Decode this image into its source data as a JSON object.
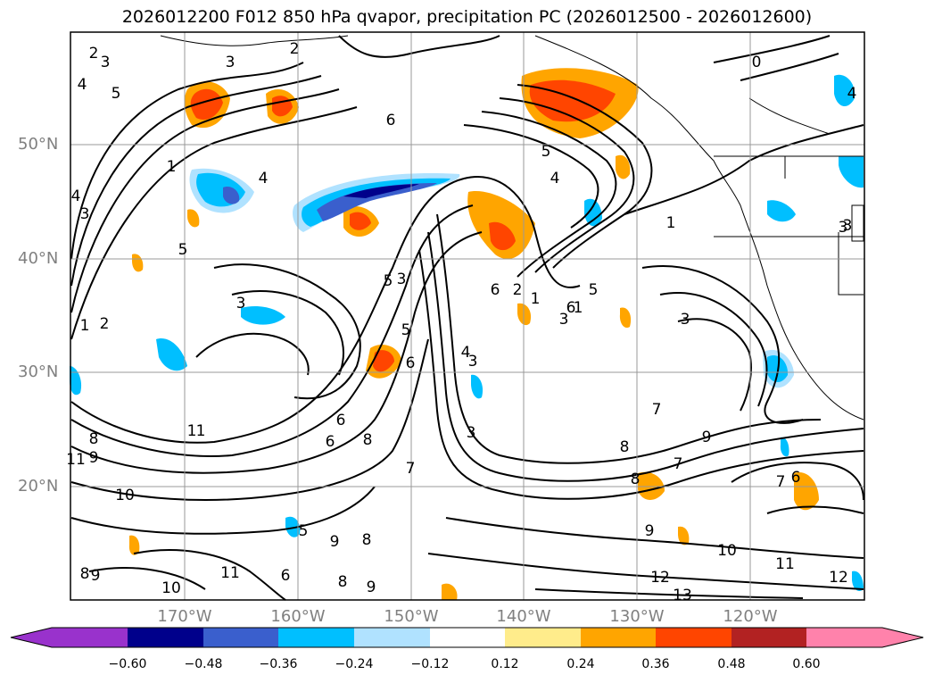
{
  "title": "2026012200 F012 850 hPa qvapor, precipitation PC (2026012500 - 2026012600)",
  "map": {
    "lat_labels": [
      "50°N",
      "40°N",
      "30°N",
      "20°N"
    ],
    "lon_labels": [
      "170°W",
      "160°W",
      "150°W",
      "140°W",
      "130°W",
      "120°W"
    ],
    "contour_labels": [
      "2",
      "3",
      "4",
      "5",
      "1",
      "3",
      "4",
      "3",
      "2",
      "6",
      "5",
      "4",
      "1",
      "0",
      "4",
      "3",
      "5",
      "3",
      "1",
      "2",
      "5",
      "3",
      "6",
      "1",
      "4",
      "3",
      "7",
      "1",
      "8",
      "9",
      "11",
      "10",
      "8",
      "9",
      "6",
      "5",
      "6",
      "7",
      "6",
      "9",
      "8",
      "8",
      "3",
      "6",
      "6",
      "5",
      "9",
      "8",
      "7",
      "8",
      "9",
      "10",
      "11",
      "12",
      "12",
      "13",
      "4",
      "3",
      "5",
      "3",
      "1",
      "6",
      "7",
      "10",
      "11",
      "9",
      "8",
      "1",
      "2",
      "3"
    ]
  },
  "colorbar": {
    "ticks": [
      "−0.60",
      "−0.48",
      "−0.36",
      "−0.24",
      "−0.12",
      "0.12",
      "0.24",
      "0.36",
      "0.48",
      "0.60"
    ],
    "colors": [
      "#9932cc",
      "#00008b",
      "#3a5fcd",
      "#00bfff",
      "#b0e2ff",
      "#ffffff",
      "#ffec8b",
      "#ffa500",
      "#ff4500",
      "#b22222",
      "#ff82ab"
    ]
  },
  "colors": {
    "grid": "#999999",
    "contour": "#000000",
    "tick_text": "#808080"
  }
}
